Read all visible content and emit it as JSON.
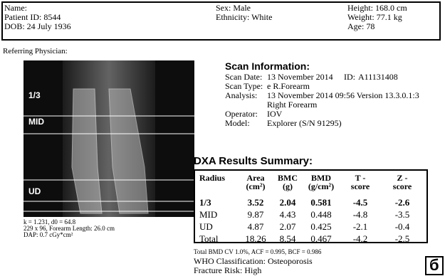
{
  "header": {
    "name": "Name:",
    "patient_id": "Patient ID: 8544",
    "dob": "DOB: 24 July 1936",
    "sex": "Sex: Male",
    "ethnicity": "Ethnicity: White",
    "height": "Height: 168.0 cm",
    "weight": "Weight: 77.1  kg",
    "age": "Age: 78"
  },
  "referring_physician": "Referring Physician:",
  "image": {
    "labels": [
      "1/3",
      "MID",
      "UD"
    ],
    "notes": [
      "k = 1.231, d0 = 64.8",
      "229 x 96,   Forearm Length: 26.0 cm",
      "DAP: 0.7 cGy*cm²"
    ]
  },
  "scan_info": {
    "title": "Scan Information:",
    "scan_date_label": "Scan Date:",
    "scan_date": "13 November 2014",
    "id_label": "ID:",
    "id": "A11131408",
    "scan_type_label": "Scan Type:",
    "scan_type": "e R.Forearm",
    "analysis_label": "Analysis:",
    "analysis": "13 November 2014 09:56 Version 13.3.0.1:3",
    "analysis_2": "Right Forearm",
    "operator_label": "Operator:",
    "operator": "IOV",
    "model_label": "Model:",
    "model": "Explorer (S/N 91295)"
  },
  "results": {
    "title": "DXA Results Summary:",
    "columns": [
      [
        "Radius"
      ],
      [
        "Area",
        "(cm²)"
      ],
      [
        "BMC",
        "(g)"
      ],
      [
        "BMD",
        "(g/cm²)"
      ],
      [
        "T -",
        "score"
      ],
      [
        "Z -",
        "score"
      ]
    ],
    "rows": [
      [
        "1/3",
        "3.52",
        "2.04",
        "0.581",
        "-4.5",
        "-2.6"
      ],
      [
        "MID",
        "9.87",
        "4.43",
        "0.448",
        "-4.8",
        "-3.5"
      ],
      [
        "UD",
        "4.87",
        "2.07",
        "0.425",
        "-2.1",
        "-0.4"
      ],
      [
        "Total",
        "18.26",
        "8.54",
        "0.467",
        "-4.2",
        "-2.5"
      ]
    ]
  },
  "footer": {
    "cv": "Total BMD CV 1.0%, ACF = 0.995, BCF = 0.986",
    "who": "WHO Classification: Osteoporosis",
    "risk": "Fracture Risk: High"
  },
  "badge": "б"
}
